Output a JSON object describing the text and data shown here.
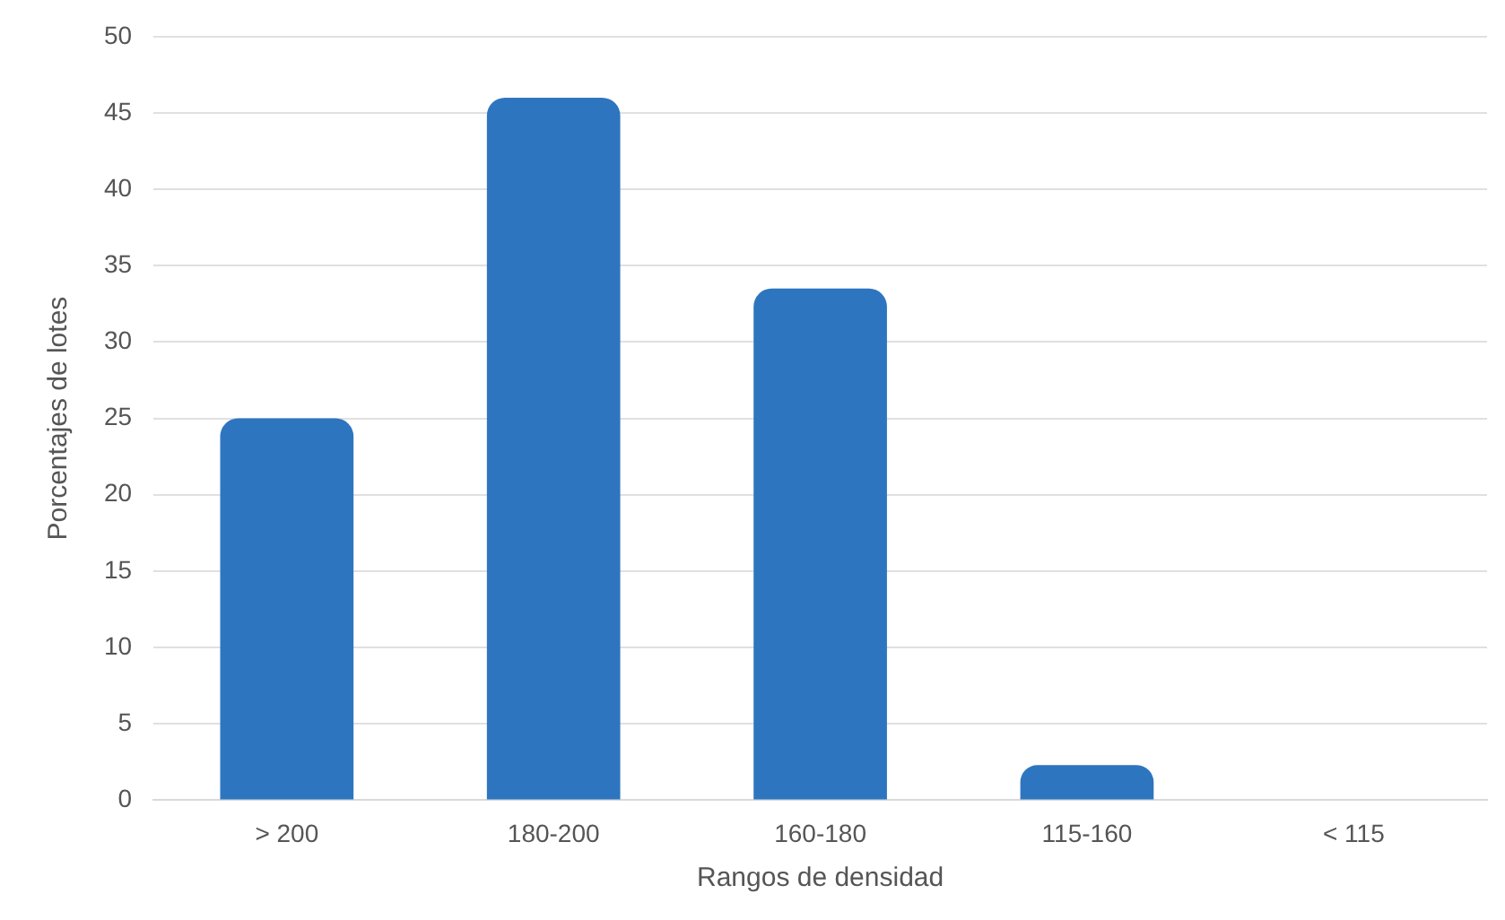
{
  "chart_data": {
    "type": "bar",
    "xlabel": "Rangos de densidad",
    "ylabel": "Porcentajes de lotes",
    "categories": [
      "> 200",
      "180-200",
      "160-180",
      "115-160",
      "< 115"
    ],
    "values": [
      25,
      46,
      33.5,
      2.3,
      0
    ],
    "color": "#2e75c0",
    "ylim": [
      0,
      50
    ],
    "yticks": [
      0,
      5,
      10,
      15,
      20,
      25,
      30,
      35,
      40,
      45,
      50
    ],
    "grid": "y",
    "legend": false
  }
}
